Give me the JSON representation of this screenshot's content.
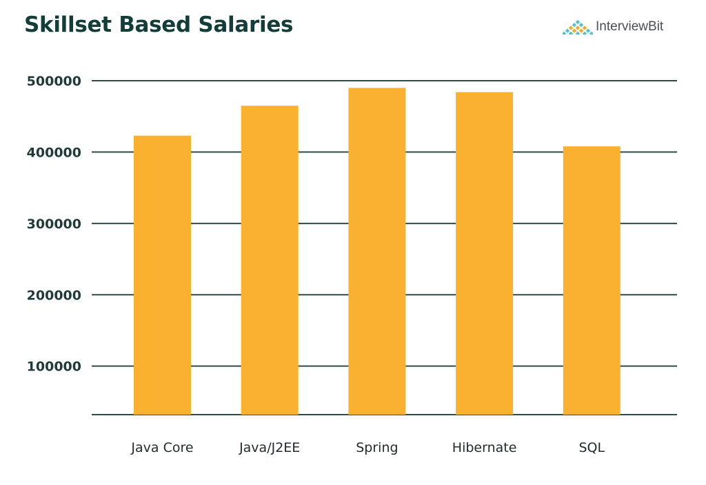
{
  "chart_data": {
    "type": "bar",
    "title": "Skillset Based Salaries",
    "categories": [
      "Java Core",
      "Java/J2EE",
      "Spring",
      "Hibernate",
      "SQL"
    ],
    "values": [
      423000,
      465000,
      490000,
      484000,
      408000
    ],
    "yticks": [
      100000,
      200000,
      300000,
      400000,
      500000
    ],
    "ytick_labels": [
      "100000",
      "200000",
      "300000",
      "400000",
      "500000"
    ],
    "ylim": [
      32000,
      500000
    ],
    "xlabel": "",
    "ylabel": "",
    "grid": true,
    "bar_color": "#FBB130",
    "grid_color": "#2E4A48"
  },
  "brand": {
    "name": "InterviewBit",
    "colors": [
      "#F6A623",
      "#4FC3C8"
    ]
  }
}
